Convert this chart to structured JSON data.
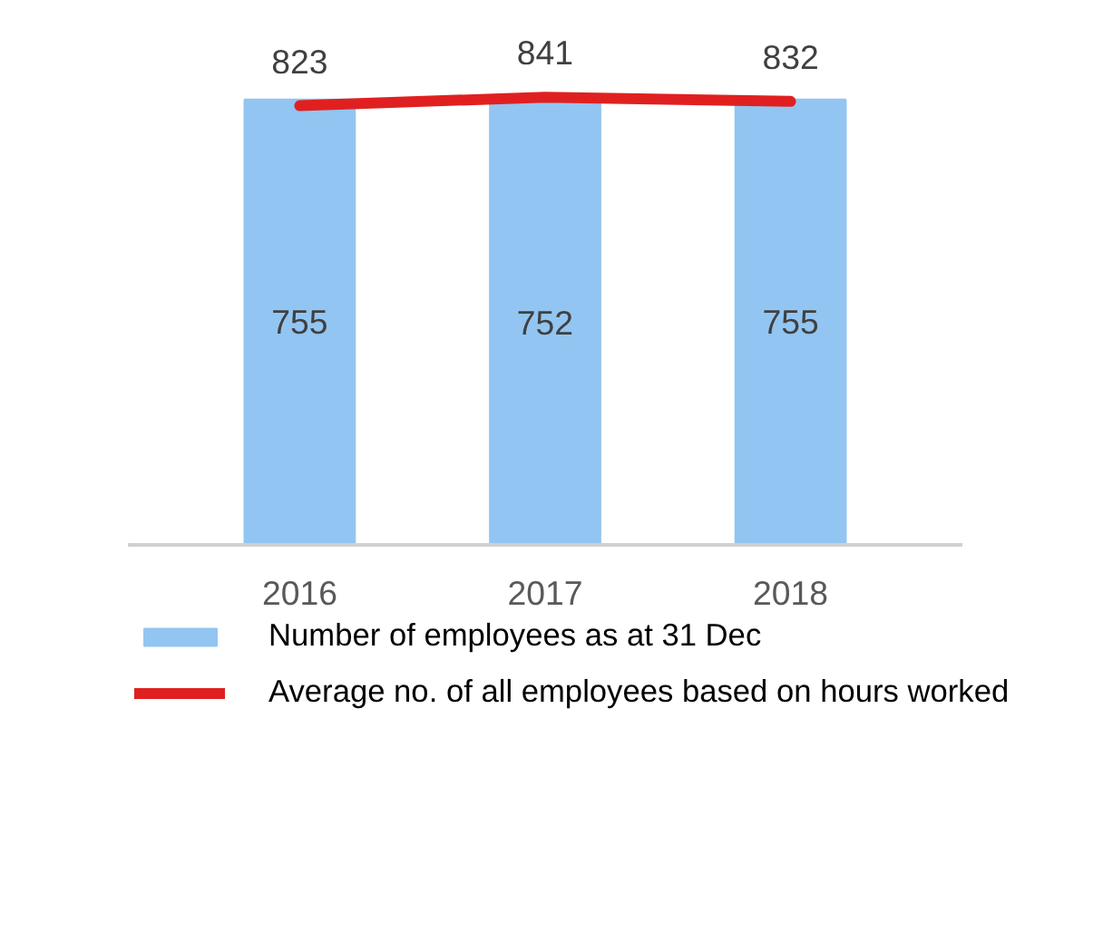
{
  "chart_data": {
    "type": "bar",
    "categories": [
      "2016",
      "2017",
      "2018"
    ],
    "series": [
      {
        "name": "Number of employees as at 31 Dec",
        "color": "#92c5f1",
        "values": [
          755,
          752,
          755
        ]
      },
      {
        "name": "Average no. of all employees based on hours worked",
        "type": "line",
        "axis": "y2",
        "color": "#e02020",
        "values": [
          823,
          841,
          832
        ]
      }
    ],
    "data_labels": true,
    "legend": "bottom",
    "tick_labels": "x"
  }
}
